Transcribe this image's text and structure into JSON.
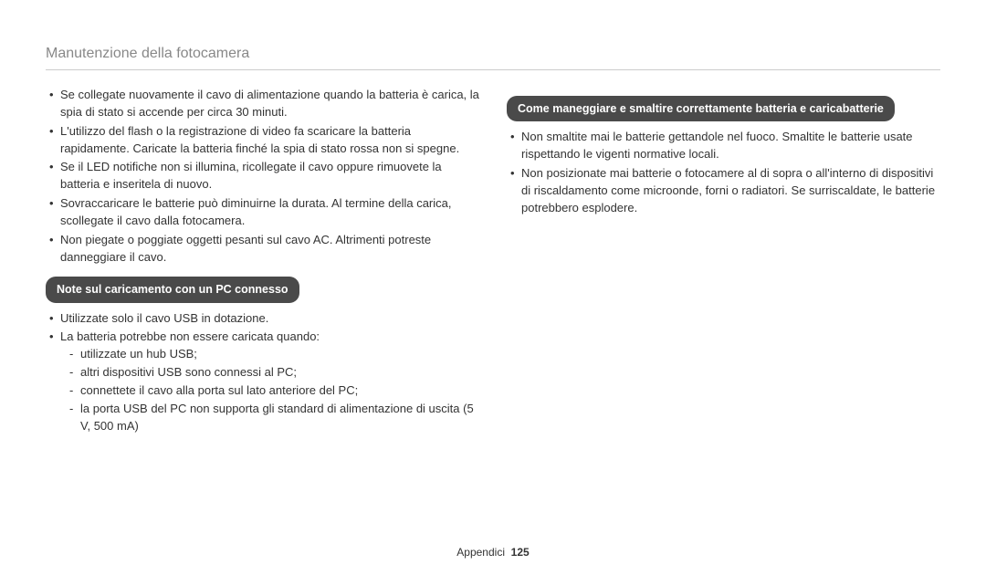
{
  "page": {
    "title": "Manutenzione della fotocamera",
    "footer_label": "Appendici",
    "footer_page": "125"
  },
  "left": {
    "top_bullets": [
      "Se collegate nuovamente il cavo di alimentazione quando la batteria è carica, la spia di stato si accende per circa 30 minuti.",
      "L'utilizzo del flash o la registrazione di video fa scaricare la batteria rapidamente. Caricate la batteria finché la spia di stato rossa non si spegne.",
      "Se il LED notifiche non si illumina, ricollegate il cavo oppure rimuovete la batteria e inseritela di nuovo.",
      "Sovraccaricare le batterie può diminuirne la durata. Al termine della carica, scollegate il cavo dalla fotocamera.",
      "Non piegate o poggiate oggetti pesanti sul cavo AC. Altrimenti potreste danneggiare il cavo."
    ],
    "badge1": "Note sul caricamento con un PC connesso",
    "pc_bullets": [
      "Utilizzate solo il cavo USB in dotazione.",
      "La batteria potrebbe non essere caricata quando:"
    ],
    "pc_sub": [
      "utilizzate un hub USB;",
      "altri dispositivi USB sono connessi al PC;",
      "connettete il cavo alla porta sul lato anteriore del PC;",
      "la porta USB del PC non supporta gli standard di alimentazione di uscita (5 V, 500 mA)"
    ]
  },
  "right": {
    "badge2": "Come maneggiare e smaltire correttamente batteria e caricabatterie",
    "bullets": [
      "Non smaltite mai le batterie gettandole nel fuoco. Smaltite le batterie usate rispettando le vigenti normative locali.",
      "Non posizionate mai batterie o fotocamere al di sopra o all'interno di dispositivi di riscaldamento come microonde, forni o radiatori. Se surriscaldate, le batterie potrebbero esplodere."
    ]
  }
}
